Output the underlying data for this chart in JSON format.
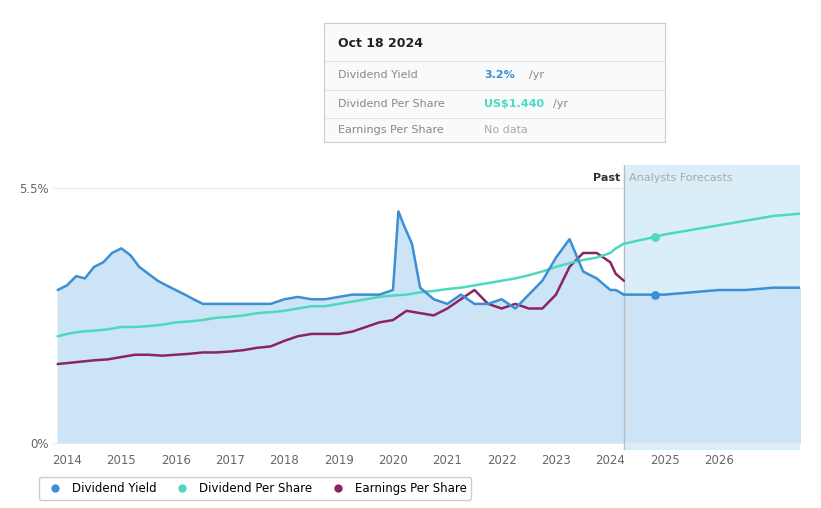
{
  "bg_color": "#ffffff",
  "fill_color": "#cce4f5",
  "forecast_bg_color": "#daeefa",
  "x_min": 2013.75,
  "x_max": 2027.5,
  "y_min": -0.15,
  "y_max": 6.0,
  "y_ticks": [
    0.0,
    5.5
  ],
  "y_tick_labels": [
    "0%",
    "5.5%"
  ],
  "x_ticks": [
    2014,
    2015,
    2016,
    2017,
    2018,
    2019,
    2020,
    2021,
    2022,
    2023,
    2024,
    2025,
    2026
  ],
  "past_line_x": 2024.25,
  "forecast_start_x": 2024.25,
  "grid_color": "#e8e8e8",
  "line_colors": {
    "dividend_yield": "#3d8fd4",
    "dividend_per_share": "#4dd9bf",
    "earnings_per_share": "#8b2560"
  },
  "tooltip": {
    "date": "Oct 18 2024",
    "dy_value": "3.2%",
    "dy_color": "#3d8fd4",
    "dps_value": "US$1.440",
    "dps_color": "#4dd9bf",
    "eps_value": "No data",
    "eps_color": "#aaaaaa"
  },
  "dividend_yield": {
    "x": [
      2013.83,
      2014.0,
      2014.17,
      2014.33,
      2014.5,
      2014.67,
      2014.83,
      2015.0,
      2015.17,
      2015.33,
      2015.5,
      2015.67,
      2015.83,
      2016.0,
      2016.17,
      2016.33,
      2016.5,
      2016.67,
      2016.83,
      2017.0,
      2017.25,
      2017.5,
      2017.75,
      2018.0,
      2018.25,
      2018.5,
      2018.75,
      2019.0,
      2019.25,
      2019.5,
      2019.75,
      2020.0,
      2020.1,
      2020.2,
      2020.35,
      2020.5,
      2020.75,
      2021.0,
      2021.25,
      2021.5,
      2021.75,
      2022.0,
      2022.25,
      2022.5,
      2022.75,
      2023.0,
      2023.25,
      2023.5,
      2023.75,
      2024.0,
      2024.1,
      2024.25
    ],
    "y": [
      3.3,
      3.4,
      3.6,
      3.55,
      3.8,
      3.9,
      4.1,
      4.2,
      4.05,
      3.8,
      3.65,
      3.5,
      3.4,
      3.3,
      3.2,
      3.1,
      3.0,
      3.0,
      3.0,
      3.0,
      3.0,
      3.0,
      3.0,
      3.1,
      3.15,
      3.1,
      3.1,
      3.15,
      3.2,
      3.2,
      3.2,
      3.3,
      5.0,
      4.7,
      4.3,
      3.35,
      3.1,
      3.0,
      3.2,
      3.0,
      3.0,
      3.1,
      2.9,
      3.2,
      3.5,
      4.0,
      4.4,
      3.7,
      3.55,
      3.3,
      3.3,
      3.2
    ]
  },
  "dividend_yield_forecast": {
    "x": [
      2024.25,
      2024.83,
      2025.0,
      2025.5,
      2026.0,
      2026.5,
      2027.0,
      2027.5
    ],
    "y": [
      3.2,
      3.2,
      3.2,
      3.25,
      3.3,
      3.3,
      3.35,
      3.35
    ]
  },
  "dividend_per_share": {
    "x": [
      2013.83,
      2014.0,
      2014.25,
      2014.5,
      2014.75,
      2015.0,
      2015.25,
      2015.5,
      2015.75,
      2016.0,
      2016.25,
      2016.5,
      2016.75,
      2017.0,
      2017.25,
      2017.5,
      2017.75,
      2018.0,
      2018.25,
      2018.5,
      2018.75,
      2019.0,
      2019.25,
      2019.5,
      2019.75,
      2020.0,
      2020.25,
      2020.5,
      2020.75,
      2021.0,
      2021.25,
      2021.5,
      2021.75,
      2022.0,
      2022.25,
      2022.5,
      2022.75,
      2023.0,
      2023.25,
      2023.5,
      2023.75,
      2024.0,
      2024.1,
      2024.25
    ],
    "y": [
      2.3,
      2.35,
      2.4,
      2.42,
      2.45,
      2.5,
      2.5,
      2.52,
      2.55,
      2.6,
      2.62,
      2.65,
      2.7,
      2.72,
      2.75,
      2.8,
      2.82,
      2.85,
      2.9,
      2.95,
      2.95,
      3.0,
      3.05,
      3.1,
      3.15,
      3.18,
      3.2,
      3.25,
      3.28,
      3.32,
      3.35,
      3.4,
      3.45,
      3.5,
      3.55,
      3.62,
      3.7,
      3.8,
      3.88,
      3.95,
      4.0,
      4.1,
      4.2,
      4.3
    ]
  },
  "dividend_per_share_forecast": {
    "x": [
      2024.25,
      2024.83,
      2025.0,
      2025.5,
      2026.0,
      2026.5,
      2027.0,
      2027.5
    ],
    "y": [
      4.3,
      4.45,
      4.5,
      4.6,
      4.7,
      4.8,
      4.9,
      4.95
    ]
  },
  "earnings_per_share": {
    "x": [
      2013.83,
      2014.0,
      2014.25,
      2014.5,
      2014.75,
      2015.0,
      2015.25,
      2015.5,
      2015.75,
      2016.0,
      2016.25,
      2016.5,
      2016.75,
      2017.0,
      2017.25,
      2017.5,
      2017.75,
      2018.0,
      2018.25,
      2018.5,
      2018.75,
      2019.0,
      2019.25,
      2019.5,
      2019.75,
      2020.0,
      2020.25,
      2020.5,
      2020.75,
      2021.0,
      2021.25,
      2021.5,
      2021.75,
      2022.0,
      2022.25,
      2022.5,
      2022.75,
      2023.0,
      2023.25,
      2023.5,
      2023.75,
      2024.0,
      2024.1,
      2024.25
    ],
    "y": [
      1.7,
      1.72,
      1.75,
      1.78,
      1.8,
      1.85,
      1.9,
      1.9,
      1.88,
      1.9,
      1.92,
      1.95,
      1.95,
      1.97,
      2.0,
      2.05,
      2.08,
      2.2,
      2.3,
      2.35,
      2.35,
      2.35,
      2.4,
      2.5,
      2.6,
      2.65,
      2.85,
      2.8,
      2.75,
      2.9,
      3.1,
      3.3,
      3.0,
      2.9,
      3.0,
      2.9,
      2.9,
      3.2,
      3.8,
      4.1,
      4.1,
      3.9,
      3.65,
      3.5
    ]
  },
  "forecast_dot_x": 2024.83,
  "forecast_dot_y_div": 3.2,
  "forecast_dot_y_dps": 4.45
}
